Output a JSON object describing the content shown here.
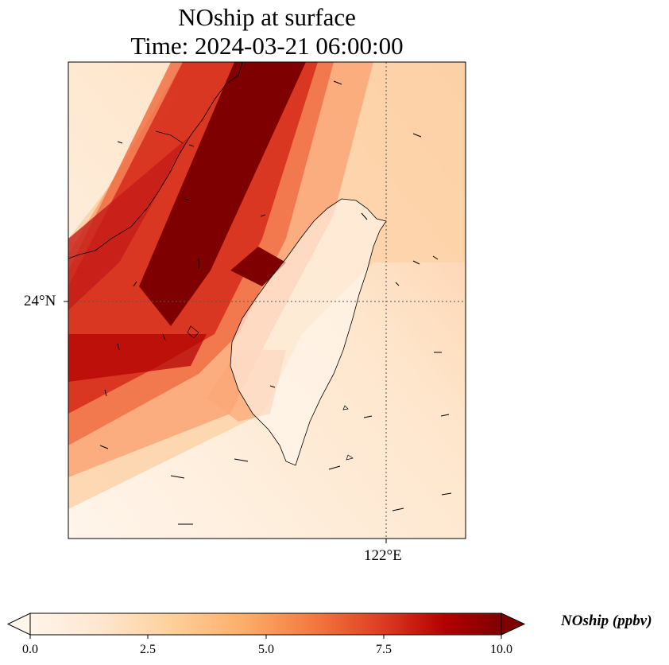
{
  "title": {
    "line1": "NOship at surface",
    "line2": "Time: 2024-03-21 06:00:00"
  },
  "map": {
    "lat_label": "24°N",
    "lon_label": "122°E",
    "colormap": [
      "#fff5eb",
      "#fee3c6",
      "#fdc590",
      "#fd9a56",
      "#f26a3b",
      "#d7301f",
      "#b00000",
      "#7f0000"
    ]
  },
  "colorbar": {
    "label": "NOship (ppbv)",
    "ticks": [
      "0.0",
      "2.5",
      "5.0",
      "7.5",
      "10.0"
    ],
    "min": 0,
    "max": 10,
    "extend": "both"
  }
}
